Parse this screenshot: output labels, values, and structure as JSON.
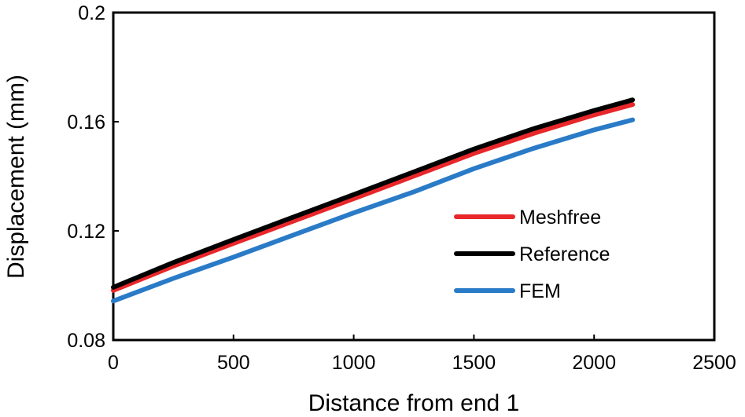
{
  "chart_data": {
    "type": "line",
    "title": "",
    "xlabel": "Distance from end 1",
    "ylabel": "Displacement  (mm)",
    "xlim": [
      0,
      2500
    ],
    "ylim": [
      0.08,
      0.2
    ],
    "xticks": [
      0,
      500,
      1000,
      1500,
      2000,
      2500
    ],
    "yticks": [
      0.08,
      0.12,
      0.16,
      0.2
    ],
    "ytick_labels": [
      "0.08",
      "0.12",
      "0.16",
      "0.2"
    ],
    "grid": false,
    "legend_position": "right-center",
    "series": [
      {
        "name": "Meshfree",
        "color": "#e8272a",
        "x": [
          0,
          250,
          500,
          750,
          1000,
          1250,
          1500,
          1750,
          2000,
          2160
        ],
        "y": [
          0.0982,
          0.1071,
          0.1154,
          0.1236,
          0.1318,
          0.1401,
          0.1484,
          0.1558,
          0.1625,
          0.1663
        ]
      },
      {
        "name": "Reference",
        "color": "#000000",
        "x": [
          0,
          250,
          500,
          750,
          1000,
          1250,
          1500,
          1750,
          2000,
          2160
        ],
        "y": [
          0.0993,
          0.1084,
          0.1168,
          0.1251,
          0.1333,
          0.1416,
          0.15,
          0.1575,
          0.1641,
          0.168
        ]
      },
      {
        "name": "FEM",
        "color": "#2a7bc7",
        "x": [
          0,
          250,
          500,
          750,
          1000,
          1250,
          1500,
          1750,
          2000,
          2160
        ],
        "y": [
          0.0943,
          0.1026,
          0.1104,
          0.1185,
          0.1266,
          0.1343,
          0.1428,
          0.1503,
          0.157,
          0.1607
        ]
      }
    ]
  }
}
